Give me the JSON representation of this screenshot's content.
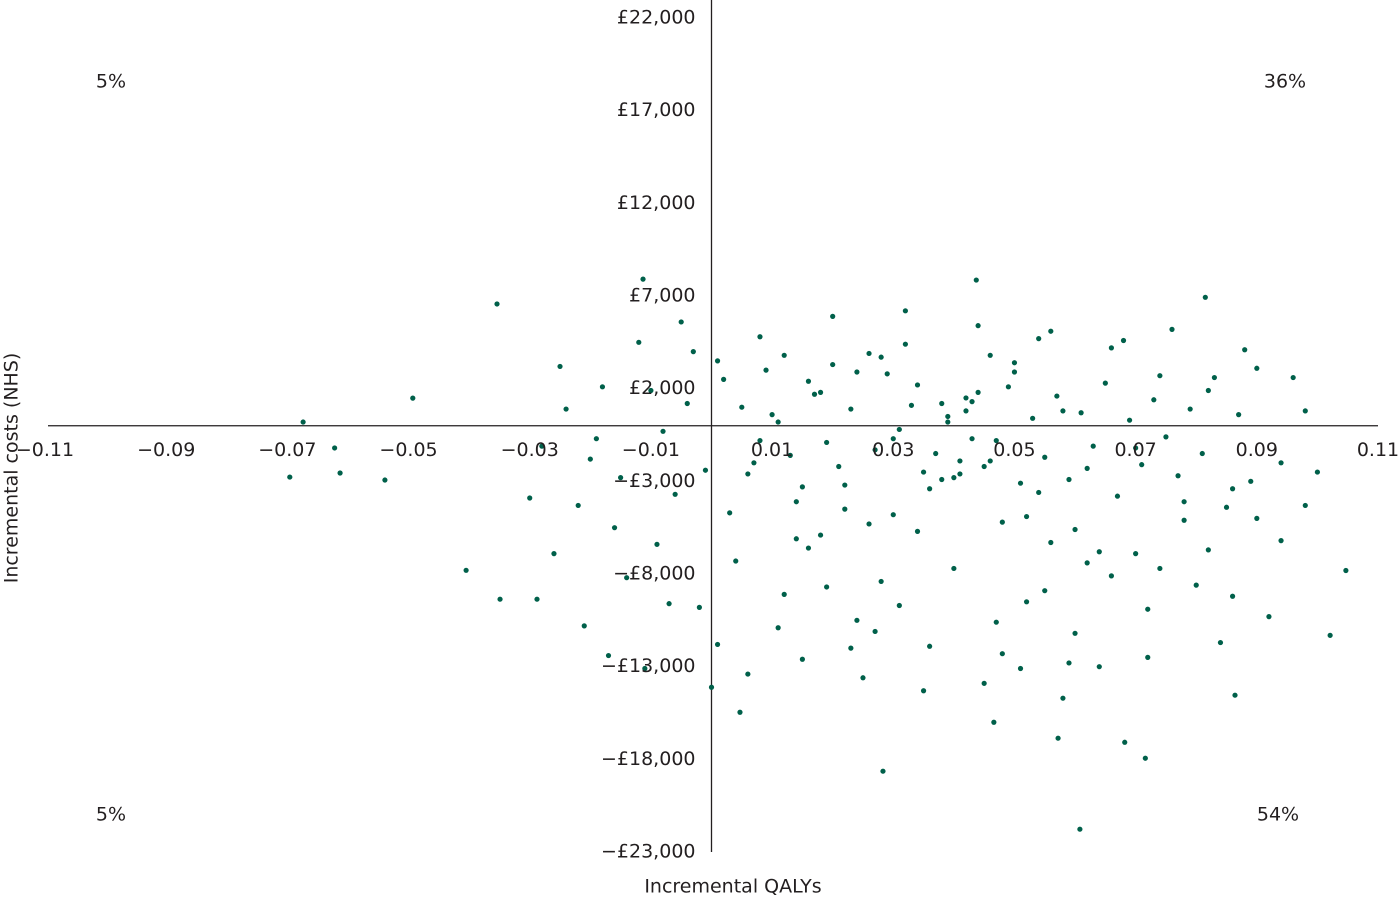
{
  "chart_data": {
    "type": "scatter",
    "color": "#00604a",
    "xlabel": "Incremental QALYs",
    "ylabel": "Incremental costs (NHS)",
    "annotations": [
      "5%",
      "36%",
      "5%",
      "54%"
    ],
    "xlim": [
      -0.11,
      0.11
    ],
    "ylim": [
      -23000,
      22000
    ],
    "xticks": [
      {
        "value": -0.11,
        "label": "−0.11"
      },
      {
        "value": -0.09,
        "label": "−0.09"
      },
      {
        "value": -0.07,
        "label": "−0.07"
      },
      {
        "value": -0.05,
        "label": "−0.05"
      },
      {
        "value": -0.03,
        "label": "−0.03"
      },
      {
        "value": -0.01,
        "label": "−0.01"
      },
      0.01,
      0.03,
      0.05,
      0.07,
      0.09,
      0.11
    ],
    "yticks": [
      {
        "value": 22000,
        "label": "£22,000"
      },
      {
        "value": 17000,
        "label": "£17,000"
      },
      {
        "value": 12000,
        "label": "£12,000"
      },
      {
        "value": 7000,
        "label": "£7,000"
      },
      {
        "value": 2000,
        "label": "£2,000"
      },
      {
        "value": -3000,
        "label": "−£3,000"
      },
      {
        "value": -8000,
        "label": "−£8,000"
      },
      {
        "value": -13000,
        "label": "−£13,000"
      },
      {
        "value": -18000,
        "label": "−£18,000"
      },
      {
        "value": -23000,
        "label": "−£23,000"
      }
    ],
    "x": [
      -0.0674,
      -0.0696,
      -0.0613,
      -0.0622,
      -0.0539,
      -0.0493,
      -0.0354,
      -0.0405,
      -0.0349,
      -0.0288,
      0.0283,
      0.0608,
      0.0716,
      0.0815,
      0.0864,
      0.1047,
      0.1021,
      0.0437,
      -0.0113,
      0,
      0.0047,
      0.0466,
      0.0572,
      0.0682,
      -0.025,
      -0.02,
      -0.016,
      -0.012,
      -0.008,
      -0.004,
      0.002,
      0.006,
      0.01,
      0.014,
      0.018,
      0.022,
      0.026,
      0.03,
      0.034,
      0.038,
      0.042,
      0.046,
      0.05,
      0.054,
      0.058,
      0.062,
      0.066,
      0.07,
      0.074,
      0.078,
      0.082,
      0.086,
      0.09,
      0.094,
      0.098,
      0.1,
      -0.028,
      -0.022,
      -0.018,
      -0.014,
      -0.009,
      -0.005,
      -0.002,
      0.004,
      0.008,
      0.012,
      0.016,
      0.02,
      0.024,
      0.028,
      0.032,
      0.036,
      0.04,
      0.044,
      0.048,
      0.052,
      0.056,
      0.06,
      0.064,
      0.068,
      0.072,
      0.076,
      0.08,
      0.084,
      0.088,
      0.092,
      0.096,
      0.025,
      0.035,
      0.045,
      0.031,
      0.033,
      0.037,
      0.039,
      0.041,
      0.043,
      0.047,
      0.049,
      0.051,
      0.053,
      0.021,
      0.023,
      0.027,
      0.029,
      0.055,
      0.057,
      0.059,
      0.061,
      0.015,
      0.017,
      0.011,
      0.013,
      0.019,
      0.063,
      0.065,
      0.067,
      0.069,
      0.071,
      0.073,
      0.075,
      0.005,
      0.007,
      0.009,
      0.077,
      0.079,
      0.081,
      0.083,
      0.085,
      0.087,
      0.089,
      0.003,
      0.001,
      -0.001,
      -0.003,
      -0.006,
      -0.01,
      -0.015,
      -0.019,
      -0.024,
      -0.03,
      0.035,
      0.04,
      0.045,
      0.038,
      0.042,
      0.036,
      0.044,
      0.041,
      0.039,
      0.043,
      0.022,
      0.026,
      0.03,
      0.034,
      0.018,
      0.014,
      0.048,
      0.052,
      0.056,
      0.06,
      0.024,
      0.028,
      0.032,
      0.046,
      0.05,
      0.054,
      0.02,
      0.016,
      0.012,
      0.008,
      0.062,
      0.066,
      0.07,
      0.074,
      0.078,
      0.082,
      0.086,
      0.09,
      0.094,
      0.098,
      0.011,
      0.015,
      0.019,
      0.023,
      0.027,
      0.031,
      0.047,
      0.051,
      0.055,
      0.059,
      -0.026,
      -0.021,
      -0.017,
      -0.011,
      -0.007,
      0.001,
      0.006,
      0.058,
      0.064,
      0.072
    ],
    "values": [
      200,
      -2770,
      -2550,
      -1200,
      -2930,
      1490,
      6570,
      -7800,
      -9360,
      -9360,
      -18640,
      -21770,
      -17940,
      6930,
      -14540,
      -7810,
      -11310,
      7860,
      7910,
      -14110,
      -15460,
      -16000,
      -16860,
      -17080,
      3200,
      -1800,
      -5500,
      4500,
      -300,
      1200,
      2500,
      -2600,
      600,
      -4100,
      1800,
      -3200,
      3900,
      -700,
      2200,
      -2900,
      1500,
      -1900,
      3400,
      -3600,
      800,
      -2300,
      4200,
      -1200,
      2700,
      -5100,
      1900,
      -3400,
      3100,
      -6200,
      800,
      -2500,
      -1100,
      -4300,
      2100,
      -8200,
      -6400,
      5600,
      -9800,
      -7300,
      4800,
      -9100,
      -6600,
      5900,
      -10500,
      -8400,
      6200,
      -11900,
      -7700,
      5400,
      -12300,
      -9500,
      5100,
      -11200,
      -6800,
      4600,
      -9900,
      5200,
      -8600,
      -11700,
      4100,
      -10300,
      2600,
      -13600,
      -14300,
      -13900,
      -200,
      1100,
      -1500,
      500,
      -2600,
      1300,
      -800,
      2100,
      -3100,
      400,
      -2200,
      900,
      -1300,
      2800,
      -1700,
      1600,
      -2900,
      700,
      -3300,
      1700,
      200,
      -1600,
      -900,
      -1100,
      2300,
      -3800,
      300,
      -2100,
      1400,
      -600,
      1000,
      -2000,
      3000,
      -2700,
      900,
      -1500,
      2600,
      -4400,
      600,
      -3000,
      -4700,
      3500,
      -2400,
      4000,
      -3700,
      1900,
      -2800,
      -700,
      900,
      -3900,
      -2500,
      -2800,
      -2200,
      1200,
      800,
      -3400,
      1800,
      -1900,
      200,
      -700,
      -4500,
      -5300,
      -4800,
      -5700,
      -5900,
      -6100,
      -5200,
      -4900,
      -6300,
      -5600,
      2900,
      3700,
      4400,
      3800,
      2900,
      4700,
      3300,
      2400,
      3800,
      -800,
      -7400,
      -8100,
      -6900,
      -7700,
      -4100,
      -6700,
      -9200,
      -5000,
      -2000,
      -4300,
      -10900,
      -12600,
      -8700,
      -12000,
      -11100,
      -9700,
      -10600,
      -13100,
      -8900,
      -12800,
      -6900,
      -10800,
      -12400,
      -13100,
      -9600,
      -11800,
      -13400,
      -14700,
      -13000,
      -12500
    ]
  }
}
